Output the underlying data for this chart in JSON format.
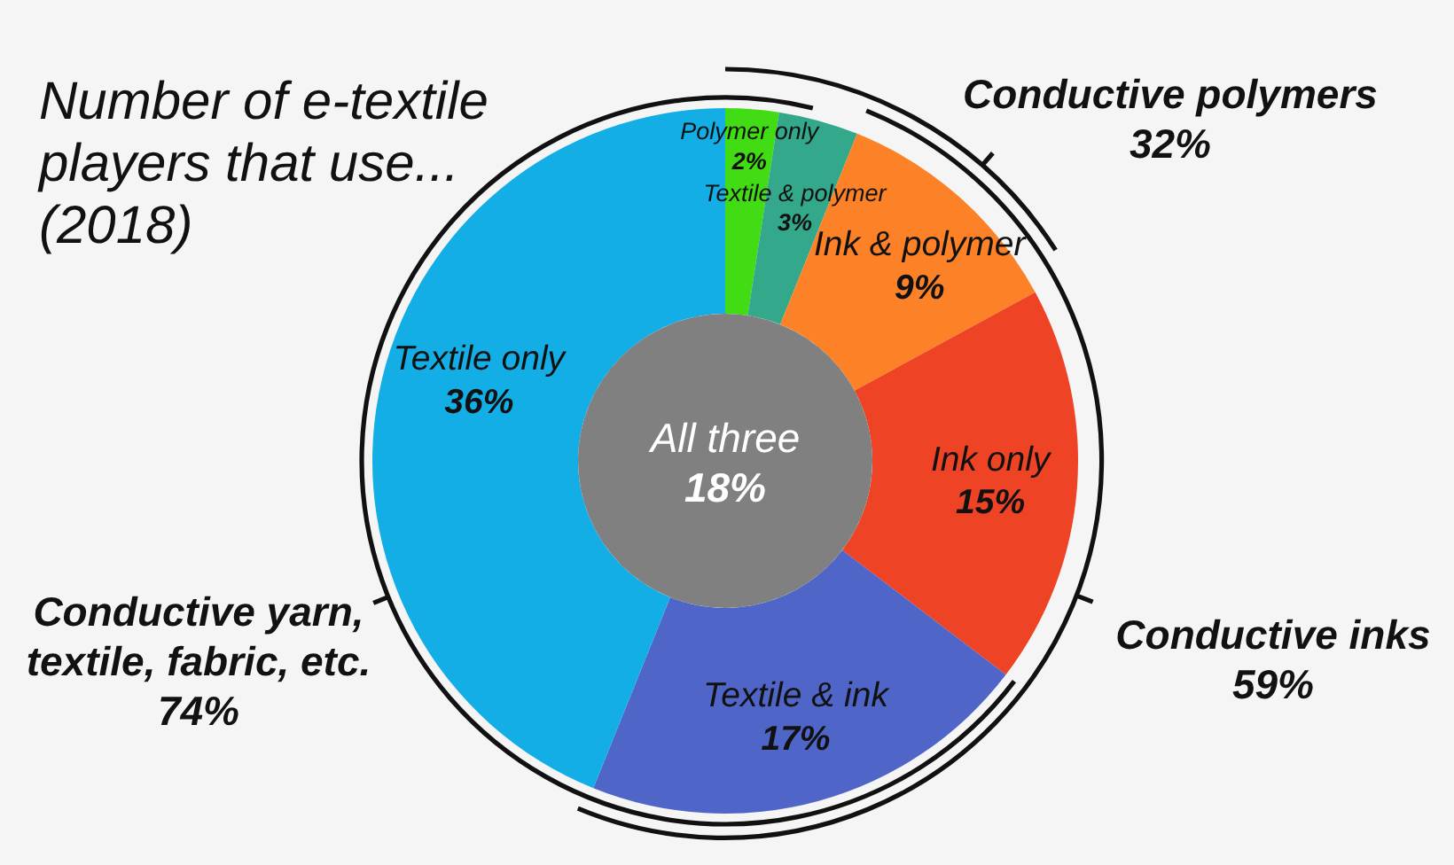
{
  "chart_data": {
    "type": "donut",
    "title": "Number of e-textile players that use... (2018)",
    "categories": [
      "Polymer only",
      "Textile & polymer",
      "Ink & polymer",
      "Ink only",
      "Textile & ink",
      "Textile only"
    ],
    "values": [
      2,
      3,
      9,
      15,
      17,
      36
    ],
    "colors": [
      "#42dc14",
      "#33a88a",
      "#fd8126",
      "#ee4325",
      "#4f66c8",
      "#14aee6"
    ],
    "value_labels": [
      "2%",
      "3%",
      "9%",
      "15%",
      "17%",
      "36%"
    ],
    "annotations": [
      "Conductive polymers 32%",
      "Conductive inks 59%",
      "Conductive yarn, textile, fabric, etc. 74%",
      "All three 18%"
    ]
  }
}
